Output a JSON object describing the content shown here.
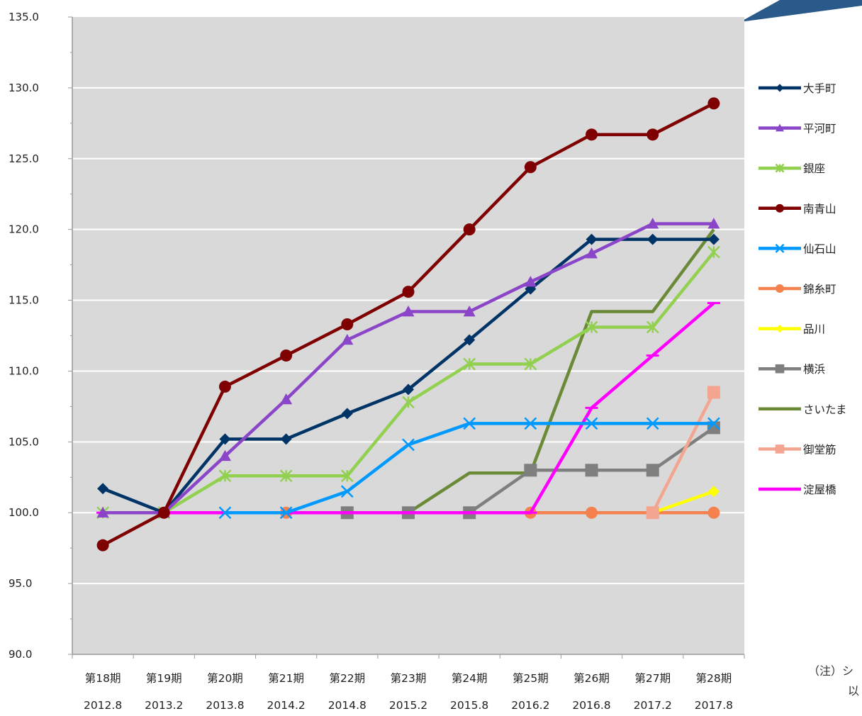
{
  "colors": {
    "plot_background": "#d9d9d9",
    "gridline": "#ffffff",
    "axis": "#999999",
    "decoration": "#2a5a8a"
  },
  "note": {
    "line1": "（注）シ",
    "line2": "以"
  },
  "chart_data": {
    "type": "line",
    "ylim": [
      90,
      135
    ],
    "yticks": [
      "90.0",
      "95.0",
      "100.0",
      "105.0",
      "110.0",
      "115.0",
      "120.0",
      "125.0",
      "130.0",
      "135.0"
    ],
    "categories": [
      "第18期",
      "第19期",
      "第20期",
      "第21期",
      "第22期",
      "第23期",
      "第24期",
      "第25期",
      "第26期",
      "第27期",
      "第28期"
    ],
    "subcategories": [
      "2012.8",
      "2013.2",
      "2013.8",
      "2014.2",
      "2014.8",
      "2015.2",
      "2015.8",
      "2016.2",
      "2016.8",
      "2017.2",
      "2017.8"
    ],
    "grid": true,
    "legend_position": "right",
    "series": [
      {
        "name": "さいたま",
        "color": "#6b8a38",
        "marker": "none",
        "start": 5,
        "values": [
          null,
          null,
          null,
          null,
          null,
          100.0,
          102.8,
          102.8,
          114.2,
          114.2,
          120.0
        ]
      },
      {
        "name": "錦糸町",
        "color": "#f5814f",
        "marker": "circle",
        "start": 3,
        "values": [
          null,
          null,
          null,
          100.0,
          100.0,
          100.0,
          100.0,
          100.0,
          100.0,
          100.0,
          100.0
        ]
      },
      {
        "name": "品川",
        "color": "#ffff00",
        "marker": "diamond",
        "start": 9,
        "values": [
          null,
          null,
          null,
          null,
          null,
          null,
          null,
          null,
          null,
          100.0,
          101.5
        ]
      },
      {
        "name": "横浜",
        "color": "#7f7f7f",
        "marker": "square",
        "start": 4,
        "values": [
          null,
          null,
          null,
          null,
          100.0,
          100.0,
          100.0,
          103.0,
          103.0,
          103.0,
          106.0
        ]
      },
      {
        "name": "御堂筋",
        "color": "#f4a58f",
        "marker": "square",
        "start": 9,
        "values": [
          null,
          null,
          null,
          null,
          null,
          null,
          null,
          null,
          null,
          100.0,
          108.5
        ]
      },
      {
        "name": "淀屋橋",
        "color": "#ff00ff",
        "marker": "dash",
        "start": 0,
        "values": [
          100.0,
          100.0,
          100.0,
          100.0,
          100.0,
          100.0,
          100.0,
          100.0,
          107.4,
          111.1,
          114.8
        ]
      },
      {
        "name": "仙石山",
        "color": "#0099ff",
        "marker": "x",
        "start": 2,
        "values": [
          null,
          null,
          100.0,
          100.0,
          101.5,
          104.8,
          106.3,
          106.3,
          106.3,
          106.3,
          106.3
        ]
      },
      {
        "name": "銀座",
        "color": "#92d050",
        "marker": "star",
        "start": 0,
        "values": [
          100.0,
          100.0,
          102.6,
          102.6,
          102.6,
          107.8,
          110.5,
          110.5,
          113.1,
          113.1,
          118.4
        ]
      },
      {
        "name": "大手町",
        "color": "#003366",
        "marker": "diamond",
        "start": 0,
        "values": [
          101.7,
          100.0,
          105.2,
          105.2,
          107.0,
          108.7,
          112.2,
          115.8,
          119.3,
          119.3,
          119.3
        ]
      },
      {
        "name": "平河町",
        "color": "#8b45c8",
        "marker": "triangle",
        "start": 0,
        "values": [
          100.0,
          100.0,
          104.0,
          108.0,
          112.2,
          114.2,
          114.2,
          116.3,
          118.3,
          120.4,
          120.4
        ]
      },
      {
        "name": "南青山",
        "color": "#7f0000",
        "marker": "circle",
        "start": 0,
        "values": [
          97.7,
          100.0,
          108.9,
          111.1,
          113.3,
          115.6,
          120.0,
          124.4,
          126.7,
          126.7,
          128.9
        ]
      }
    ],
    "legend_order": [
      "大手町",
      "平河町",
      "銀座",
      "南青山",
      "仙石山",
      "錦糸町",
      "品川",
      "横浜",
      "さいたま",
      "御堂筋",
      "淀屋橋"
    ]
  }
}
